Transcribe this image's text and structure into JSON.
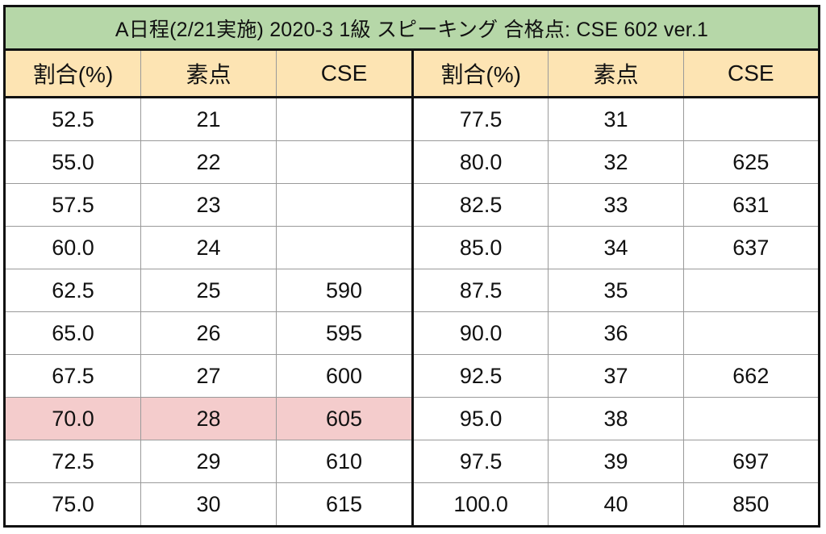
{
  "title": "A日程(2/21実施) 2020-3 1級 スピーキング 合格点: CSE 602 ver.1",
  "headers": [
    "割合(%)",
    "素点",
    "CSE"
  ],
  "colors": {
    "title_bg": "#b6d7a8",
    "header_bg": "#fde4b3",
    "highlight_bg": "#f4cccc"
  },
  "left_rows": [
    {
      "pct": "52.5",
      "raw": "21",
      "cse": ""
    },
    {
      "pct": "55.0",
      "raw": "22",
      "cse": ""
    },
    {
      "pct": "57.5",
      "raw": "23",
      "cse": ""
    },
    {
      "pct": "60.0",
      "raw": "24",
      "cse": ""
    },
    {
      "pct": "62.5",
      "raw": "25",
      "cse": "590"
    },
    {
      "pct": "65.0",
      "raw": "26",
      "cse": "595"
    },
    {
      "pct": "67.5",
      "raw": "27",
      "cse": "600"
    },
    {
      "pct": "70.0",
      "raw": "28",
      "cse": "605",
      "highlight": true
    },
    {
      "pct": "72.5",
      "raw": "29",
      "cse": "610"
    },
    {
      "pct": "75.0",
      "raw": "30",
      "cse": "615"
    }
  ],
  "right_rows": [
    {
      "pct": "77.5",
      "raw": "31",
      "cse": ""
    },
    {
      "pct": "80.0",
      "raw": "32",
      "cse": "625"
    },
    {
      "pct": "82.5",
      "raw": "33",
      "cse": "631"
    },
    {
      "pct": "85.0",
      "raw": "34",
      "cse": "637"
    },
    {
      "pct": "87.5",
      "raw": "35",
      "cse": ""
    },
    {
      "pct": "90.0",
      "raw": "36",
      "cse": ""
    },
    {
      "pct": "92.5",
      "raw": "37",
      "cse": "662"
    },
    {
      "pct": "95.0",
      "raw": "38",
      "cse": ""
    },
    {
      "pct": "97.5",
      "raw": "39",
      "cse": "697"
    },
    {
      "pct": "100.0",
      "raw": "40",
      "cse": "850"
    }
  ]
}
